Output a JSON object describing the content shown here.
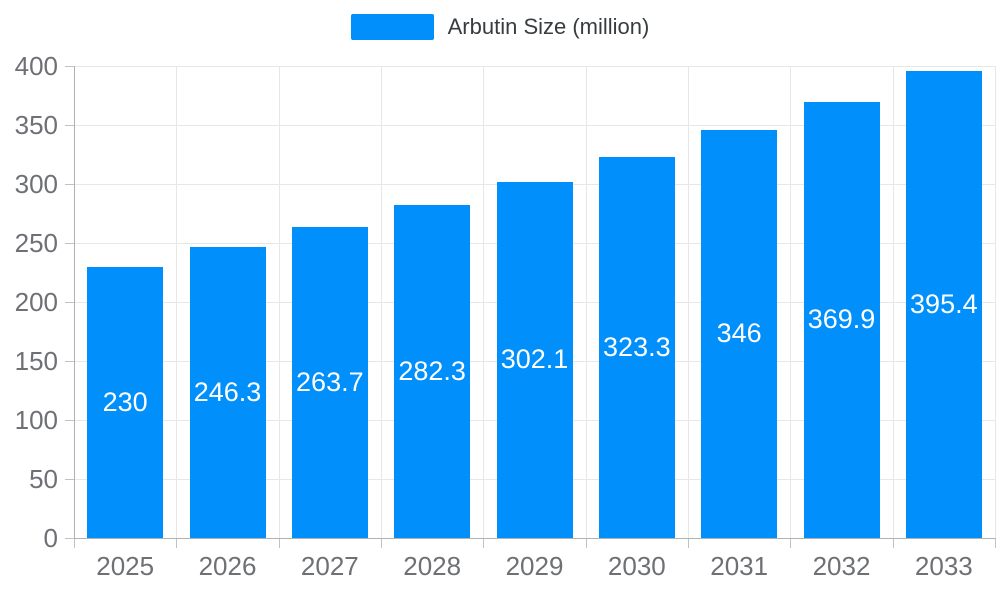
{
  "legend": {
    "label": "Arbutin Size (million)",
    "marker": "legend-swatch"
  },
  "colors": {
    "bar": "#008FFB",
    "grid": "#e7e7e7",
    "axis": "#b1b1b1",
    "axis_label": "#6e7075",
    "legend_label": "#373d3f",
    "data_label": "#ffffff",
    "background": "#ffffff"
  },
  "chart_data": {
    "type": "bar",
    "title": "",
    "categories": [
      "2025",
      "2026",
      "2027",
      "2028",
      "2029",
      "2030",
      "2031",
      "2032",
      "2033"
    ],
    "series": [
      {
        "name": "Arbutin Size (million)",
        "values": [
          230,
          246.3,
          263.7,
          282.3,
          302.1,
          323.3,
          346,
          369.9,
          395.4
        ]
      }
    ],
    "value_labels": [
      "230",
      "246.3",
      "263.7",
      "282.3",
      "302.1",
      "323.3",
      "346",
      "369.9",
      "395.4"
    ],
    "xlabel": "",
    "ylabel": "",
    "ylim": [
      0,
      400
    ],
    "y_ticks": [
      0,
      50,
      100,
      150,
      200,
      250,
      300,
      350,
      400
    ],
    "grid": "on",
    "legend_position": "top",
    "data_labels": "inside-center"
  }
}
